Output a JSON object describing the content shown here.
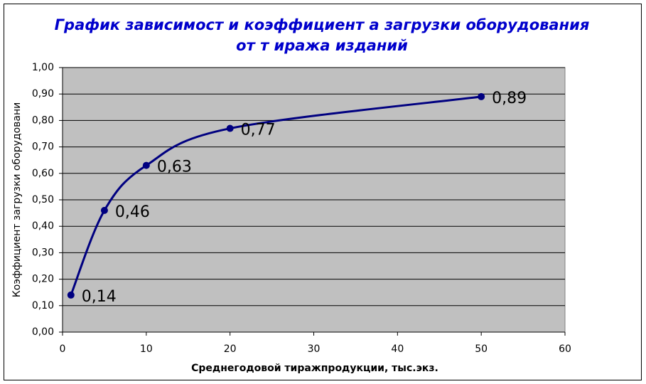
{
  "chart_data": {
    "type": "line",
    "title": [
      "График зависимост и коэффициент а загрузки оборудования",
      "от т иража изданий"
    ],
    "x_label": "Среднегодовой тиражпродукции, тыс.экз.",
    "y_label": "Коэффициент загрузки оборудовани",
    "x": [
      1,
      5,
      10,
      20,
      50
    ],
    "series": [
      {
        "color": "#000080",
        "values": [
          0.14,
          0.46,
          0.63,
          0.77,
          0.89
        ],
        "value_labels": [
          "0,14",
          "0,46",
          "0,63",
          "0,77",
          "0,89"
        ]
      }
    ],
    "xlim": [
      0,
      60
    ],
    "xticks": [
      0,
      10,
      20,
      30,
      40,
      50,
      60
    ],
    "ylim": [
      0,
      1
    ],
    "yticks": [
      {
        "value": 0,
        "label": "0,00"
      },
      {
        "value": 0.1,
        "label": "0,10"
      },
      {
        "value": 0.2,
        "label": "0,20"
      },
      {
        "value": 0.3,
        "label": "0,30"
      },
      {
        "value": 0.4,
        "label": "0,40"
      },
      {
        "value": 0.5,
        "label": "0,50"
      },
      {
        "value": 0.6,
        "label": "0,60"
      },
      {
        "value": 0.7,
        "label": "0,70"
      },
      {
        "value": 0.8,
        "label": "0,80"
      },
      {
        "value": 0.9,
        "label": "0,90"
      },
      {
        "value": 1,
        "label": "1,00"
      }
    ],
    "grid": true,
    "smooth": true,
    "plot_background": "#c0c0c0"
  }
}
